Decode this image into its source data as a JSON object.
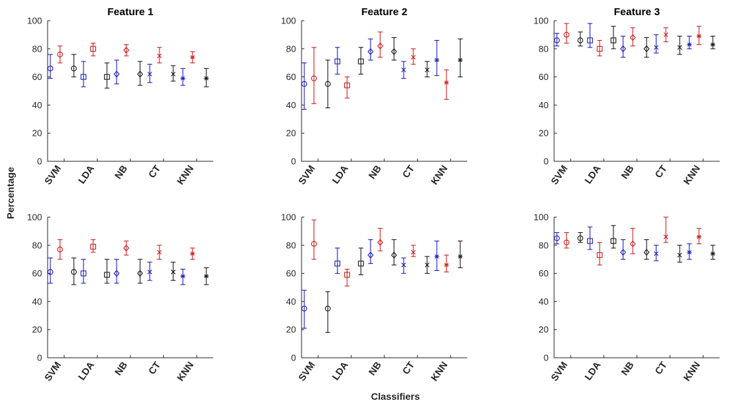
{
  "figure": {
    "ylabel": "Percentage",
    "xlabel": "Classifiers",
    "colors": {
      "blue": "#1f1fbf",
      "red": "#cc2222",
      "black": "#1a1a1a"
    }
  },
  "chart_data": [
    {
      "type": "errorbar",
      "title": "Feature 1",
      "ylim": [
        0,
        100
      ],
      "yticks": [
        0,
        20,
        40,
        60,
        80,
        100
      ],
      "categories": [
        "SVM",
        "LDA",
        "NB",
        "CT",
        "KNN"
      ],
      "markers": [
        "o",
        "s",
        "d",
        "x",
        "*"
      ],
      "series": [
        {
          "name": "blue",
          "mean": [
            66,
            60,
            62,
            62,
            59
          ],
          "lower": [
            59,
            53,
            55,
            56,
            54
          ],
          "upper": [
            76,
            71,
            72,
            69,
            66
          ]
        },
        {
          "name": "red",
          "mean": [
            76,
            80,
            79,
            75,
            74
          ],
          "lower": [
            70,
            75,
            75,
            70,
            70
          ],
          "upper": [
            82,
            84,
            83,
            81,
            78
          ]
        },
        {
          "name": "black",
          "mean": [
            66,
            60,
            62,
            62,
            59
          ],
          "lower": [
            60,
            52,
            54,
            57,
            53
          ],
          "upper": [
            76,
            70,
            71,
            68,
            66
          ]
        }
      ]
    },
    {
      "type": "errorbar",
      "title": "Feature 2",
      "ylim": [
        0,
        100
      ],
      "yticks": [
        0,
        20,
        40,
        60,
        80,
        100
      ],
      "categories": [
        "SVM",
        "LDA",
        "NB",
        "CT",
        "KNN"
      ],
      "markers": [
        "o",
        "s",
        "d",
        "x",
        "*"
      ],
      "series": [
        {
          "name": "blue",
          "mean": [
            55,
            71,
            78,
            65,
            72
          ],
          "lower": [
            37,
            62,
            72,
            59,
            61
          ],
          "upper": [
            70,
            81,
            87,
            71,
            86
          ]
        },
        {
          "name": "red",
          "mean": [
            59,
            54,
            82,
            74,
            56
          ],
          "lower": [
            41,
            45,
            74,
            69,
            44
          ],
          "upper": [
            81,
            60,
            92,
            80,
            65
          ]
        },
        {
          "name": "black",
          "mean": [
            55,
            71,
            78,
            65,
            72
          ],
          "lower": [
            38,
            62,
            72,
            60,
            60
          ],
          "upper": [
            72,
            81,
            88,
            71,
            87
          ]
        }
      ]
    },
    {
      "type": "errorbar",
      "title": "Feature 3",
      "ylim": [
        0,
        100
      ],
      "yticks": [
        0,
        20,
        40,
        60,
        80,
        100
      ],
      "categories": [
        "SVM",
        "LDA",
        "NB",
        "CT",
        "KNN"
      ],
      "markers": [
        "o",
        "s",
        "d",
        "x",
        "*"
      ],
      "series": [
        {
          "name": "blue",
          "mean": [
            86,
            86,
            80,
            81,
            83
          ],
          "lower": [
            82,
            81,
            74,
            77,
            80
          ],
          "upper": [
            91,
            98,
            89,
            90,
            89
          ]
        },
        {
          "name": "red",
          "mean": [
            90,
            80,
            88,
            90,
            89
          ],
          "lower": [
            84,
            75,
            82,
            85,
            83
          ],
          "upper": [
            98,
            86,
            95,
            95,
            96
          ]
        },
        {
          "name": "black",
          "mean": [
            86,
            86,
            80,
            81,
            83
          ],
          "lower": [
            82,
            80,
            74,
            76,
            80
          ],
          "upper": [
            92,
            96,
            88,
            89,
            89
          ]
        }
      ]
    },
    {
      "type": "errorbar",
      "title": "",
      "ylim": [
        0,
        100
      ],
      "yticks": [
        0,
        20,
        40,
        60,
        80,
        100
      ],
      "categories": [
        "SVM",
        "LDA",
        "NB",
        "CT",
        "KNN"
      ],
      "markers": [
        "o",
        "s",
        "d",
        "x",
        "*"
      ],
      "series": [
        {
          "name": "blue",
          "mean": [
            61,
            60,
            60,
            61,
            58
          ],
          "lower": [
            53,
            53,
            53,
            55,
            52
          ],
          "upper": [
            71,
            70,
            70,
            68,
            63
          ]
        },
        {
          "name": "red",
          "mean": [
            77,
            79,
            78,
            75,
            74
          ],
          "lower": [
            70,
            75,
            73,
            70,
            70
          ],
          "upper": [
            84,
            84,
            83,
            80,
            78
          ]
        },
        {
          "name": "black",
          "mean": [
            61,
            59,
            60,
            61,
            58
          ],
          "lower": [
            52,
            53,
            53,
            55,
            52
          ],
          "upper": [
            71,
            70,
            70,
            68,
            64
          ]
        }
      ]
    },
    {
      "type": "errorbar",
      "title": "",
      "ylim": [
        0,
        100
      ],
      "yticks": [
        0,
        20,
        40,
        60,
        80,
        100
      ],
      "categories": [
        "SVM",
        "LDA",
        "NB",
        "CT",
        "KNN"
      ],
      "markers": [
        "o",
        "s",
        "d",
        "x",
        "*"
      ],
      "series": [
        {
          "name": "blue",
          "mean": [
            35,
            67,
            73,
            66,
            72
          ],
          "lower": [
            21,
            60,
            67,
            60,
            62
          ],
          "upper": [
            48,
            78,
            84,
            71,
            83
          ]
        },
        {
          "name": "red",
          "mean": [
            81,
            59,
            82,
            75,
            66
          ],
          "lower": [
            70,
            51,
            76,
            72,
            61
          ],
          "upper": [
            98,
            63,
            92,
            80,
            73
          ]
        },
        {
          "name": "black",
          "mean": [
            35,
            67,
            73,
            66,
            72
          ],
          "lower": [
            18,
            59,
            66,
            60,
            64
          ],
          "upper": [
            47,
            78,
            84,
            72,
            83
          ]
        }
      ]
    },
    {
      "type": "errorbar",
      "title": "",
      "ylim": [
        0,
        100
      ],
      "yticks": [
        0,
        20,
        40,
        60,
        80,
        100
      ],
      "categories": [
        "SVM",
        "LDA",
        "NB",
        "CT",
        "KNN"
      ],
      "markers": [
        "o",
        "s",
        "d",
        "x",
        "*"
      ],
      "series": [
        {
          "name": "blue",
          "mean": [
            85,
            83,
            75,
            74,
            75
          ],
          "lower": [
            81,
            77,
            70,
            69,
            70
          ],
          "upper": [
            89,
            93,
            84,
            80,
            81
          ]
        },
        {
          "name": "red",
          "mean": [
            82,
            73,
            81,
            86,
            86
          ],
          "lower": [
            78,
            66,
            74,
            82,
            81
          ],
          "upper": [
            89,
            82,
            92,
            100,
            92
          ]
        },
        {
          "name": "black",
          "mean": [
            85,
            83,
            75,
            73,
            74
          ],
          "lower": [
            82,
            78,
            70,
            68,
            70
          ],
          "upper": [
            89,
            94,
            84,
            80,
            80
          ]
        }
      ]
    }
  ]
}
